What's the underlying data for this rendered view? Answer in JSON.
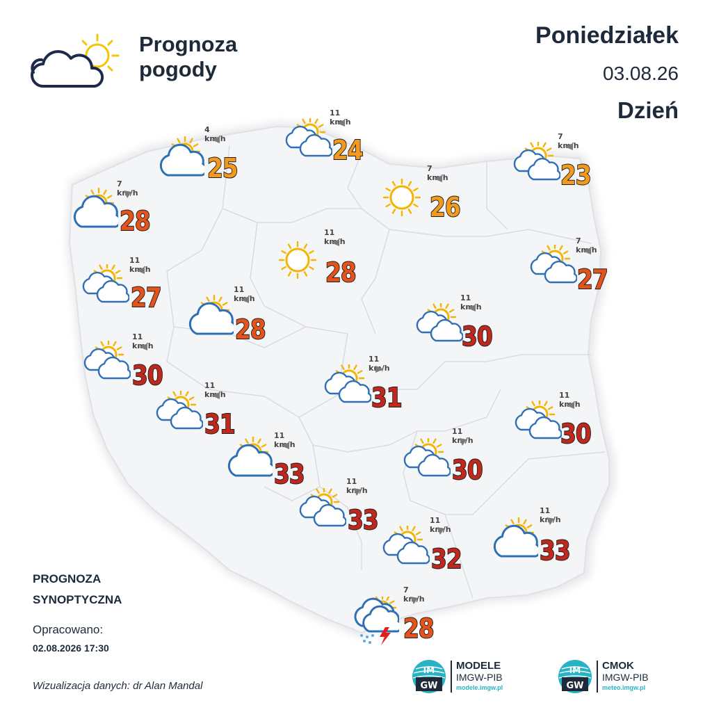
{
  "header": {
    "title_line1": "Prognoza",
    "title_line2": "pogody",
    "day": "Poniedziałek",
    "date": "03.08.26",
    "period": "Dzień"
  },
  "footer": {
    "title_line1": "PROGNOZA",
    "title_line2": "SYNOPTYCZNA",
    "prepared_label": "Opracowano:",
    "prepared_date": "02.08.2026 17:30",
    "credit": "Wizualizacja danych: dr Alan Mandal"
  },
  "logos": [
    {
      "name": "MODELE",
      "org": "IMGW-PIB",
      "url": "modele.imgw.pl",
      "mark": "IM GW"
    },
    {
      "name": "CMOK",
      "org": "IMGW-PIB",
      "url": "meteo.imgw.pl",
      "mark": "IM GW"
    }
  ],
  "colors": {
    "temp_warm": "#f39a1e",
    "temp_hot": "#e3531a",
    "temp_very_hot": "#c0281e",
    "sun": "#f5b400",
    "cloud_stroke": "#2f6fb5",
    "map_fill": "#f4f5f7",
    "map_border": "#d8dadf"
  },
  "stations": [
    {
      "temp": "25",
      "wind": "4 km/h",
      "icon": "partly-cloudy-icon",
      "color": "#f39a1e"
    },
    {
      "temp": "24",
      "wind": "11 km/h",
      "icon": "sun-clouds-icon",
      "color": "#f39a1e"
    },
    {
      "temp": "23",
      "wind": "7 km/h",
      "icon": "sun-clouds-icon",
      "color": "#f39a1e"
    },
    {
      "temp": "28",
      "wind": "7 km/h",
      "icon": "partly-cloudy-icon",
      "color": "#e3531a"
    },
    {
      "temp": "26",
      "wind": "7 km/h",
      "icon": "sun-icon",
      "color": "#f39a1e"
    },
    {
      "temp": "28",
      "wind": "11 km/h",
      "icon": "sun-icon",
      "color": "#e3531a"
    },
    {
      "temp": "27",
      "wind": "7 km/h",
      "icon": "sun-clouds-icon",
      "color": "#e3531a"
    },
    {
      "temp": "27",
      "wind": "11 km/h",
      "icon": "sun-clouds-icon",
      "color": "#e3531a"
    },
    {
      "temp": "28",
      "wind": "11 km/h",
      "icon": "partly-cloudy-icon",
      "color": "#e3531a"
    },
    {
      "temp": "30",
      "wind": "11 km/h",
      "icon": "sun-clouds-icon",
      "color": "#c0281e"
    },
    {
      "temp": "30",
      "wind": "11 km/h",
      "icon": "sun-clouds-icon",
      "color": "#c0281e"
    },
    {
      "temp": "31",
      "wind": "11 km/h",
      "icon": "sun-clouds-icon",
      "color": "#c0281e"
    },
    {
      "temp": "31",
      "wind": "11 km/h",
      "icon": "sun-clouds-icon",
      "color": "#c0281e"
    },
    {
      "temp": "30",
      "wind": "11 km/h",
      "icon": "sun-clouds-icon",
      "color": "#c0281e"
    },
    {
      "temp": "33",
      "wind": "11 km/h",
      "icon": "partly-cloudy-icon",
      "color": "#c0281e"
    },
    {
      "temp": "30",
      "wind": "11 km/h",
      "icon": "sun-clouds-icon",
      "color": "#c0281e"
    },
    {
      "temp": "33",
      "wind": "11 km/h",
      "icon": "sun-clouds-icon",
      "color": "#c0281e"
    },
    {
      "temp": "32",
      "wind": "11 km/h",
      "icon": "sun-clouds-icon",
      "color": "#c0281e"
    },
    {
      "temp": "33",
      "wind": "11 km/h",
      "icon": "partly-cloudy-icon",
      "color": "#c0281e"
    },
    {
      "temp": "28",
      "wind": "7 km/h",
      "icon": "thunderstorm-icon",
      "color": "#e3531a"
    }
  ]
}
